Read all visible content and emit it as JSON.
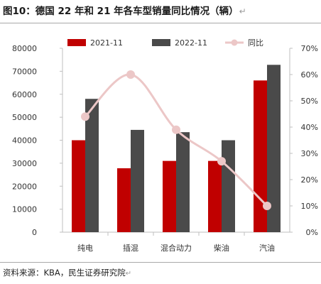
{
  "header": {
    "title": "图10：德国 22 年和 21 年各车型销量同比情况（辆）",
    "title_mark": "↵"
  },
  "footer": {
    "source": "资料来源：KBA，民生证券研究院",
    "source_mark": "↵"
  },
  "chart_data": {
    "type": "bar",
    "categories": [
      "纯电",
      "插混",
      "混合动力",
      "柴油",
      "汽油"
    ],
    "series": [
      {
        "name": "2021-11",
        "type": "bar",
        "axis": "left",
        "color": "#c00000",
        "values": [
          40000,
          27800,
          31000,
          31000,
          66000
        ]
      },
      {
        "name": "2022-11",
        "type": "bar",
        "axis": "left",
        "color": "#4a4a4a",
        "values": [
          58000,
          44500,
          43500,
          40000,
          72800
        ]
      },
      {
        "name": "同比",
        "type": "line",
        "axis": "right",
        "color": "#ecc7c7",
        "values": [
          44,
          60,
          39,
          27,
          10
        ]
      }
    ],
    "y_left": {
      "min": 0,
      "max": 80000,
      "step": 10000,
      "ticks": [
        "0",
        "10000",
        "20000",
        "30000",
        "40000",
        "50000",
        "60000",
        "70000",
        "80000"
      ]
    },
    "y_right": {
      "min": 0,
      "max": 70,
      "step": 10,
      "unit": "%",
      "ticks": [
        "0%",
        "10%",
        "20%",
        "30%",
        "40%",
        "50%",
        "60%",
        "70%"
      ]
    },
    "legend_position": "top",
    "grid": false
  }
}
